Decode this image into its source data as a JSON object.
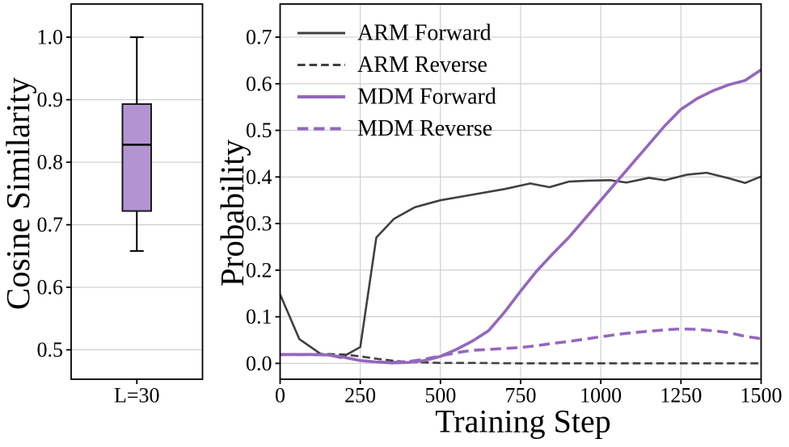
{
  "figure": {
    "background": "#ffffff",
    "text_color": "#000000",
    "grid_color": "#cccccc",
    "spine_color": "#000000"
  },
  "chart_data": [
    {
      "type": "box",
      "title": "",
      "xlabel": "",
      "ylabel": "Cosine Similarity",
      "categories": [
        "L=30"
      ],
      "ylim": [
        0.453,
        1.053
      ],
      "yticks": [
        0.5,
        0.6,
        0.7,
        0.8,
        0.9,
        1.0
      ],
      "ytick_labels": [
        "0.5",
        "0.6",
        "0.7",
        "0.8",
        "0.9",
        "1.0"
      ],
      "grid": "horizontal",
      "boxes": [
        {
          "label": "L=30",
          "whisker_low": 0.658,
          "q1": 0.722,
          "median": 0.828,
          "q3": 0.893,
          "whisker_high": 1.0,
          "fill_color": "#b394d2",
          "edge_color": "#1a1a1a",
          "median_color": "#000000"
        }
      ]
    },
    {
      "type": "line",
      "title": "",
      "xlabel": "Training Step",
      "ylabel": "Probability",
      "xlim": [
        0,
        1500
      ],
      "ylim": [
        -0.034,
        0.771
      ],
      "xticks": [
        0,
        250,
        500,
        750,
        1000,
        1250,
        1500
      ],
      "xtick_labels": [
        "0",
        "250",
        "500",
        "750",
        "1000",
        "1250",
        "1500"
      ],
      "yticks": [
        0.0,
        0.1,
        0.2,
        0.3,
        0.4,
        0.5,
        0.6,
        0.7
      ],
      "ytick_labels": [
        "0.0",
        "0.1",
        "0.2",
        "0.3",
        "0.4",
        "0.5",
        "0.6",
        "0.7"
      ],
      "grid": "both",
      "legend_position": "upper left",
      "legend_frame": false,
      "series": [
        {
          "name": "ARM Forward",
          "color": "#404040",
          "style": "solid",
          "line_width": 2.6,
          "x": [
            0,
            60,
            125,
            190,
            250,
            300,
            355,
            420,
            500,
            600,
            700,
            780,
            840,
            900,
            960,
            1030,
            1080,
            1150,
            1200,
            1270,
            1330,
            1400,
            1450,
            1500
          ],
          "y": [
            0.148,
            0.052,
            0.021,
            0.012,
            0.035,
            0.27,
            0.31,
            0.335,
            0.35,
            0.362,
            0.374,
            0.386,
            0.378,
            0.39,
            0.392,
            0.393,
            0.388,
            0.398,
            0.393,
            0.405,
            0.409,
            0.397,
            0.387,
            0.401
          ]
        },
        {
          "name": "ARM Reverse",
          "color": "#404040",
          "style": "dashed",
          "line_width": 2.6,
          "x": [
            0,
            100,
            150,
            200,
            250,
            300,
            350,
            400,
            450,
            500,
            600,
            750,
            1000,
            1250,
            1500
          ],
          "y": [
            0.02,
            0.02,
            0.02,
            0.019,
            0.015,
            0.01,
            0.006,
            0.003,
            0.002,
            0.001,
            0.001,
            0.0,
            0.0,
            0.0,
            0.0
          ]
        },
        {
          "name": "MDM Forward",
          "color": "#9467bd",
          "style": "solid",
          "line_width": 3.6,
          "x": [
            0,
            100,
            150,
            200,
            250,
            300,
            350,
            400,
            450,
            500,
            550,
            600,
            650,
            700,
            750,
            800,
            850,
            900,
            950,
            1000,
            1050,
            1100,
            1150,
            1200,
            1250,
            1300,
            1350,
            1400,
            1450,
            1500
          ],
          "y": [
            0.019,
            0.019,
            0.018,
            0.013,
            0.006,
            0.003,
            0.001,
            0.002,
            0.006,
            0.015,
            0.03,
            0.048,
            0.07,
            0.11,
            0.155,
            0.198,
            0.235,
            0.27,
            0.31,
            0.35,
            0.39,
            0.43,
            0.47,
            0.51,
            0.545,
            0.568,
            0.585,
            0.598,
            0.607,
            0.63
          ]
        },
        {
          "name": "MDM Reverse",
          "color": "#9467bd",
          "style": "dashed",
          "line_width": 3.6,
          "x": [
            0,
            100,
            150,
            200,
            250,
            300,
            350,
            400,
            450,
            500,
            550,
            600,
            650,
            700,
            750,
            800,
            850,
            900,
            950,
            1000,
            1050,
            1100,
            1150,
            1200,
            1250,
            1300,
            1350,
            1400,
            1450,
            1500
          ],
          "y": [
            0.019,
            0.019,
            0.018,
            0.013,
            0.006,
            0.003,
            0.002,
            0.004,
            0.009,
            0.016,
            0.023,
            0.028,
            0.03,
            0.032,
            0.034,
            0.038,
            0.043,
            0.047,
            0.052,
            0.057,
            0.062,
            0.066,
            0.069,
            0.072,
            0.074,
            0.073,
            0.07,
            0.066,
            0.058,
            0.053
          ]
        }
      ]
    }
  ]
}
